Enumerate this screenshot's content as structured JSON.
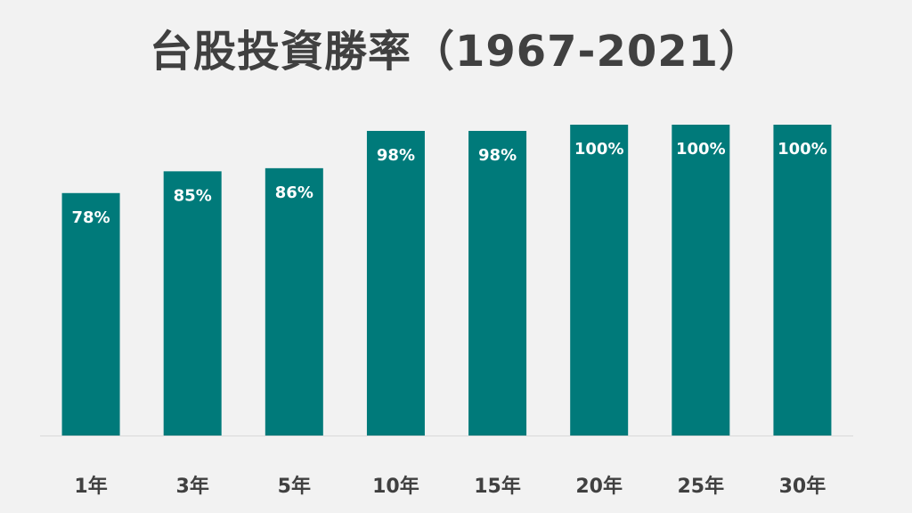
{
  "chart_data": {
    "type": "bar",
    "title": "台股投資勝率（1967-2021）",
    "categories": [
      "1年",
      "3年",
      "5年",
      "10年",
      "15年",
      "20年",
      "25年",
      "30年"
    ],
    "values": [
      78,
      85,
      86,
      98,
      98,
      100,
      100,
      100
    ],
    "data_labels": [
      "78%",
      "85%",
      "86%",
      "98%",
      "98%",
      "100%",
      "100%",
      "100%"
    ],
    "ylim": [
      0,
      100
    ],
    "xlabel": "",
    "ylabel": "",
    "grid": false,
    "bar_color": "#007a7a",
    "label_color": "#ffffff",
    "text_color": "#404040",
    "background": "#f2f2f2",
    "baseline_color": "#d9d9d9"
  }
}
